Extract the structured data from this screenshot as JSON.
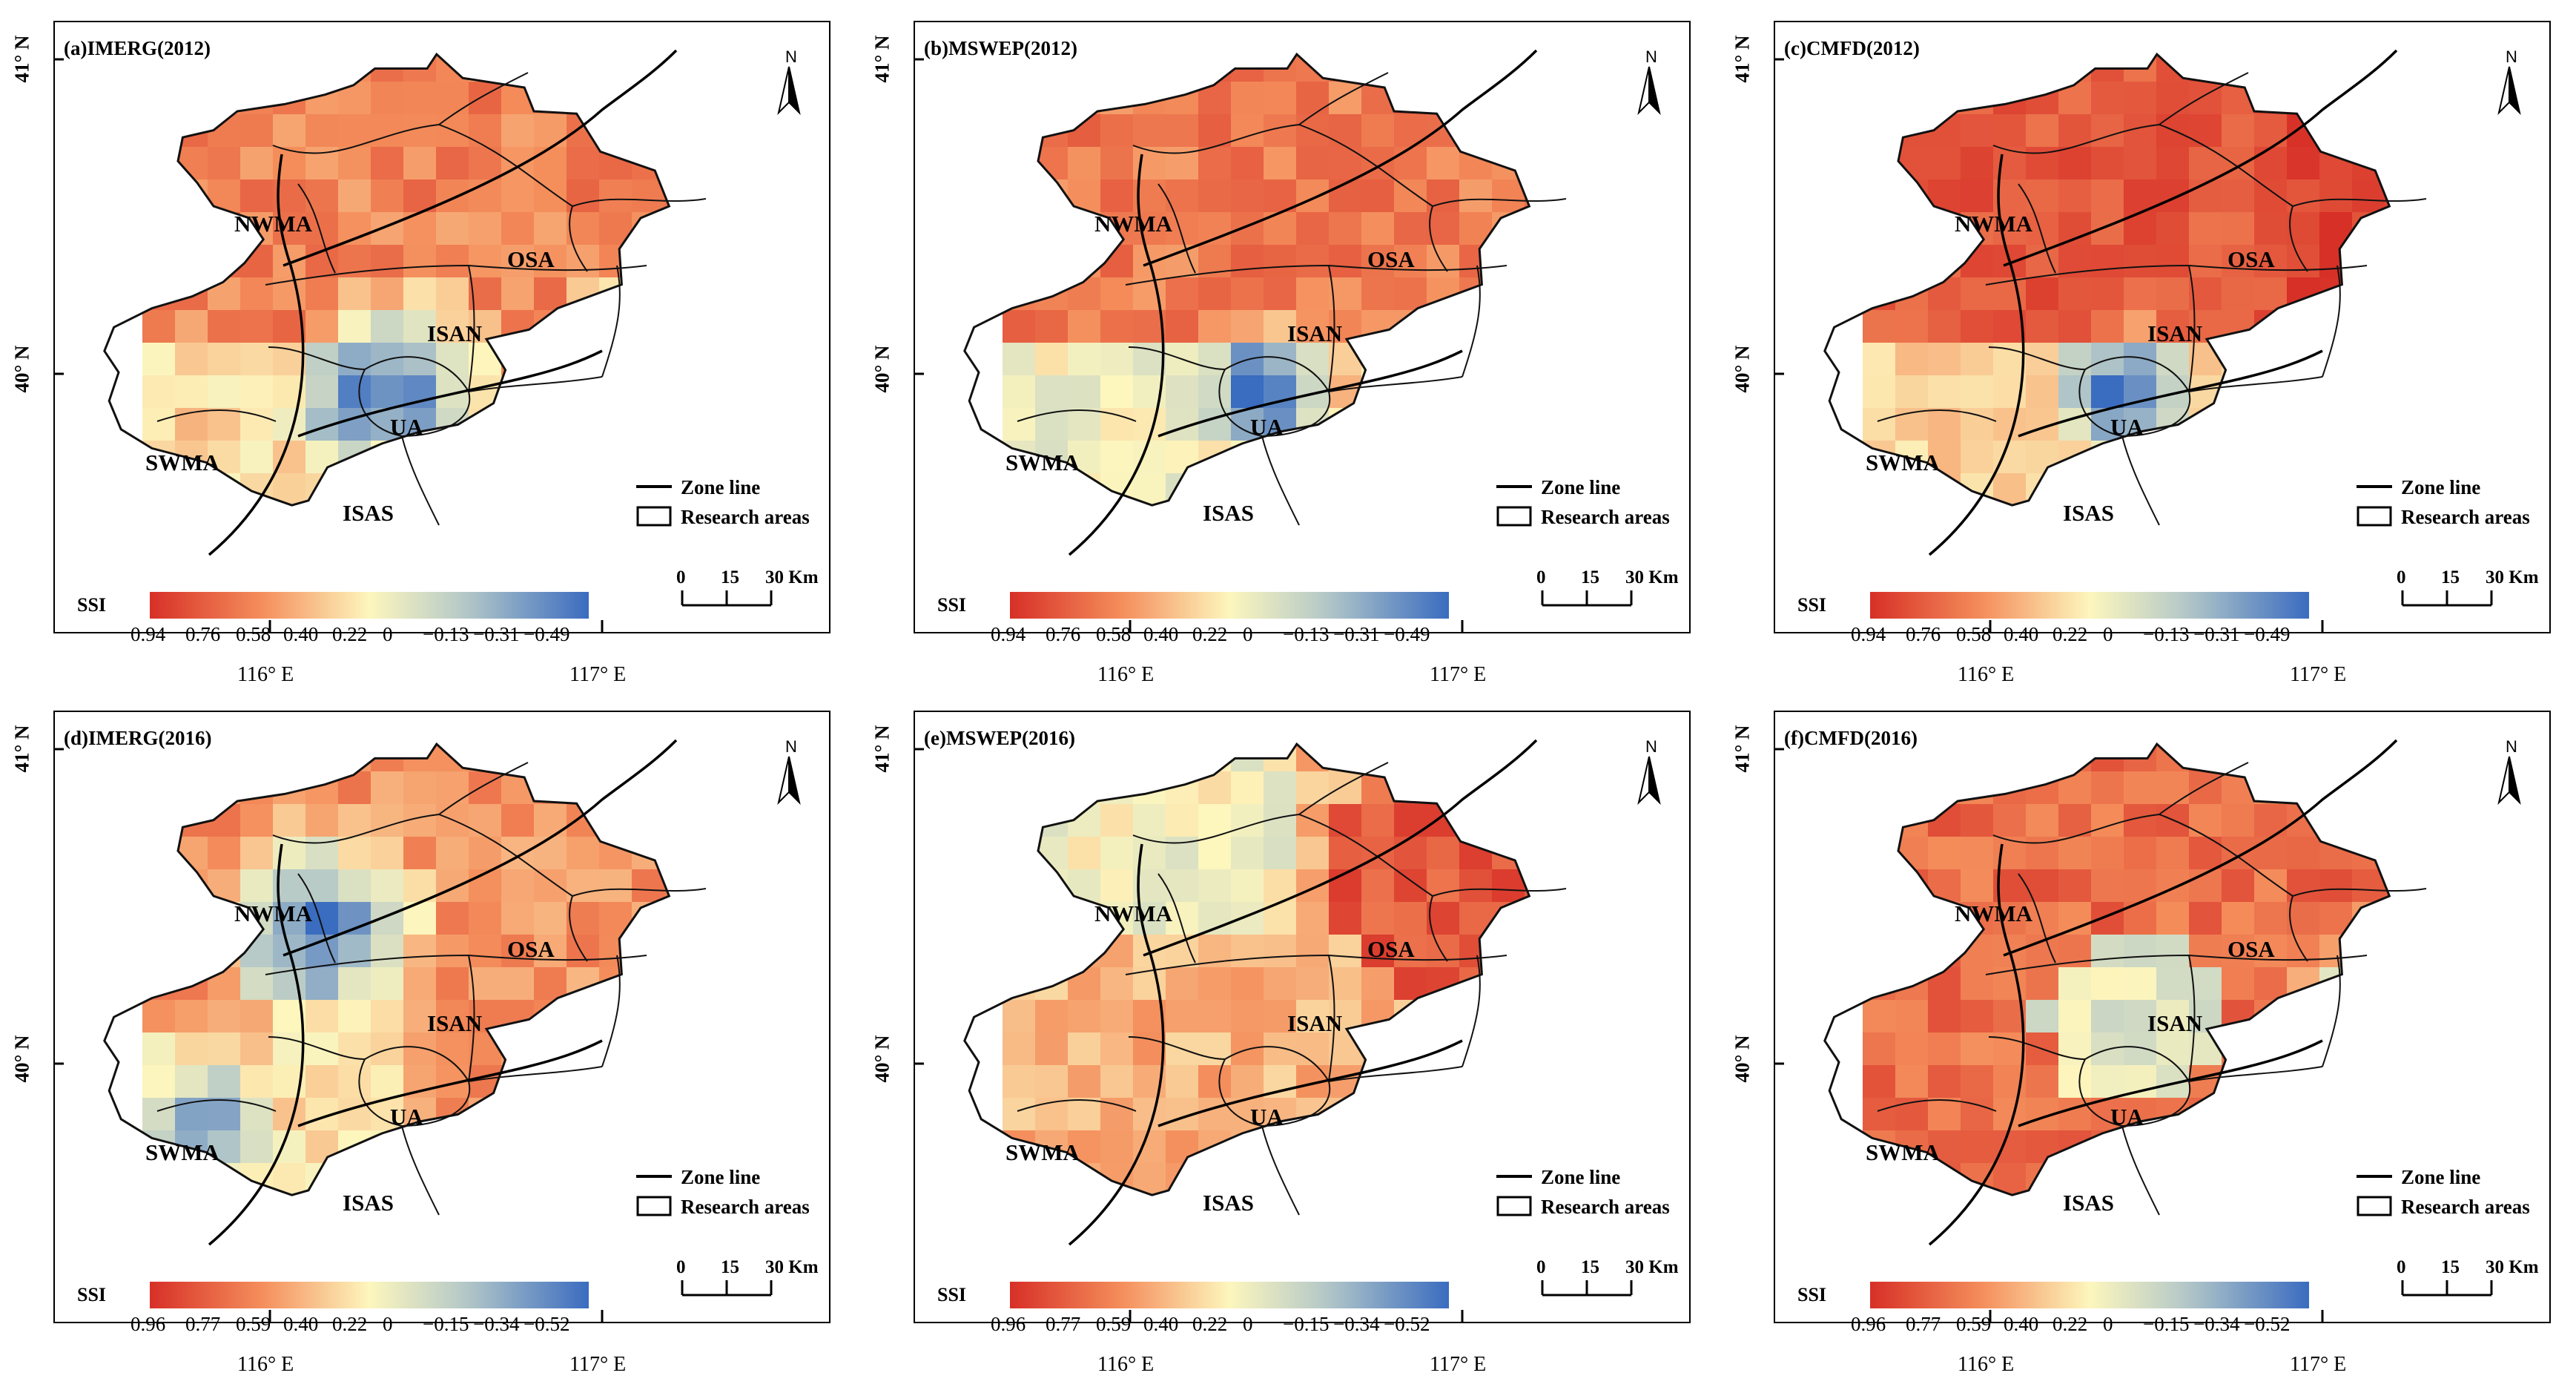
{
  "figure": {
    "panels": [
      {
        "title": "(a)IMERG(2012)",
        "scale": [
          "0.94",
          "0.76",
          "0.58",
          "0.40",
          "0.22",
          "0",
          "−0.13",
          "−0.31",
          "−0.49"
        ],
        "pattern": 0
      },
      {
        "title": "(b)MSWEP(2012)",
        "scale": [
          "0.94",
          "0.76",
          "0.58",
          "0.40",
          "0.22",
          "0",
          "−0.13",
          "−0.31",
          "−0.49"
        ],
        "pattern": 1
      },
      {
        "title": "(c)CMFD(2012)",
        "scale": [
          "0.94",
          "0.76",
          "0.58",
          "0.40",
          "0.22",
          "0",
          "−0.13",
          "−0.31",
          "−0.49"
        ],
        "pattern": 2
      },
      {
        "title": "(d)IMERG(2016)",
        "scale": [
          "0.96",
          "0.77",
          "0.59",
          "0.40",
          "0.22",
          "0",
          "−0.15",
          "−0.34",
          "−0.52"
        ],
        "pattern": 3
      },
      {
        "title": "(e)MSWEP(2016)",
        "scale": [
          "0.96",
          "0.77",
          "0.59",
          "0.40",
          "0.22",
          "0",
          "−0.15",
          "−0.34",
          "−0.52"
        ],
        "pattern": 4
      },
      {
        "title": "(f)CMFD(2016)",
        "scale": [
          "0.96",
          "0.77",
          "0.59",
          "0.40",
          "0.22",
          "0",
          "−0.15",
          "−0.34",
          "−0.52"
        ],
        "pattern": 5
      }
    ],
    "regions": [
      "NWMA",
      "OSA",
      "ISAN",
      "UA",
      "SWMA",
      "ISAS"
    ],
    "lat_ticks": [
      "41° N",
      "40° N"
    ],
    "lon_ticks": [
      "116° E",
      "117° E"
    ],
    "north_label": "N",
    "legend": {
      "zone_line": "Zone line",
      "research_areas": "Research areas"
    },
    "scalebar": {
      "labels": [
        "0",
        "15",
        "30 Km"
      ]
    },
    "colorbar_label": "SSI",
    "colors": {
      "high": "#d7301f",
      "mid": "#fdf6bd",
      "low": "#3a6cc0"
    }
  }
}
